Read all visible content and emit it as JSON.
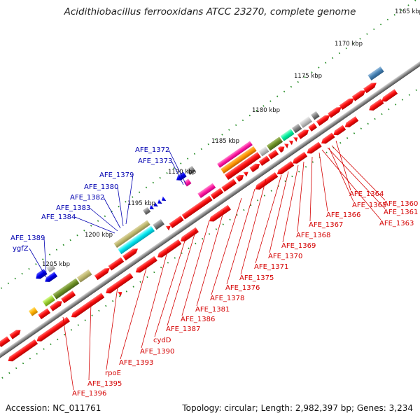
{
  "title": "Acidithiobacillus ferrooxidans ATCC 23270, complete genome",
  "footer": {
    "accession": "Accession: NC_011761",
    "topology": "Topology: circular; Length: 2,982,397 bp; Genes: 3,234"
  },
  "ticks": [
    "1165 kbp",
    "1170 kbp",
    "1175 kbp",
    "1180 kbp",
    "1185 kbp",
    "1190 kbp",
    "1195 kbp",
    "1200 kbp",
    "1205 kbp"
  ],
  "red_labels": [
    "AFE_1360",
    "AFE_1361",
    "AFE_1363",
    "AFE_1364",
    "AFE_1365",
    "AFE_1366",
    "AFE_1367",
    "AFE_1368",
    "AFE_1369",
    "AFE_1370",
    "AFE_1371",
    "AFE_1375",
    "AFE_1376",
    "AFE_1378",
    "AFE_1381",
    "AFE_1386",
    "AFE_1387",
    "cydD",
    "AFE_1390",
    "AFE_1393",
    "rpoE",
    "AFE_1395",
    "AFE_1396"
  ],
  "blue_labels": [
    "AFE_1372",
    "AFE_1373",
    "AFE_1379",
    "AFE_1380",
    "AFE_1382",
    "AFE_1383",
    "AFE_1384",
    "AFE_1389",
    "ygfZ"
  ],
  "colors": {
    "red": "#ff0000",
    "blue": "#0000ee",
    "gray": "#7f7f7f",
    "tick": "#228b22",
    "label_red": "#d40000",
    "label_blue": "#0000b0"
  }
}
